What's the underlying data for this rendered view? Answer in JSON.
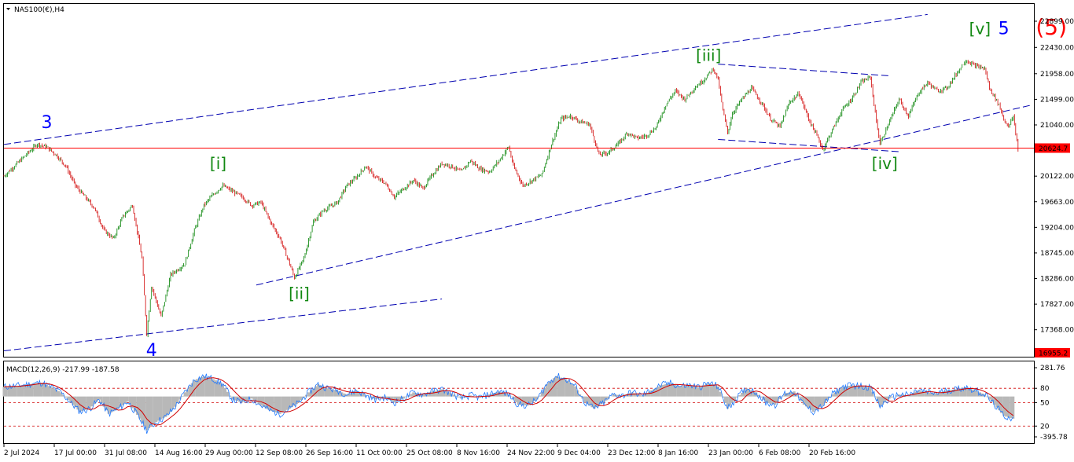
{
  "window": {
    "symbol_label": "NAS100(€),H4"
  },
  "chart_data": [
    {
      "type": "candlestick",
      "title": "NAS100(€),H4",
      "price_axis": {
        "ticks": [
          "22899.00",
          "22430.00",
          "21958.00",
          "21499.00",
          "21040.00",
          "20624.7",
          "20122.00",
          "19663.00",
          "19204.00",
          "18745.00",
          "18286.00",
          "17827.00",
          "17368.00",
          "16955.2"
        ],
        "ylim": [
          16955.2,
          22899
        ]
      },
      "current_price": {
        "value": 20624.7,
        "label": "20624.7",
        "color": "#ff0000"
      },
      "low_marker": {
        "value": 16955.2,
        "label": "16955.2",
        "color": "#ff0000"
      },
      "horizontal_line": {
        "value": 20624.7,
        "color": "#ff0000"
      },
      "time_axis": {
        "ticks": [
          "2 Jul 2024",
          "17 Jul 00:00",
          "31 Jul 08:00",
          "14 Aug 16:00",
          "29 Aug 00:00",
          "12 Sep 08:00",
          "26 Sep 16:00",
          "11 Oct 00:00",
          "25 Oct 08:00",
          "8 Nov 16:00",
          "24 Nov 22:00",
          "9 Dec 04:00",
          "23 Dec 12:00",
          "8 Jan 16:00",
          "23 Jan 00:00",
          "6 Feb 08:00",
          "20 Feb 16:00"
        ]
      },
      "price_path": [
        {
          "i": 0,
          "p": 20122
        },
        {
          "i": 4,
          "p": 20450
        },
        {
          "i": 7,
          "p": 20700
        },
        {
          "i": 9,
          "p": 20640
        },
        {
          "i": 11,
          "p": 20500
        },
        {
          "i": 13,
          "p": 20300
        },
        {
          "i": 15,
          "p": 19950
        },
        {
          "i": 17,
          "p": 19750
        },
        {
          "i": 19,
          "p": 19550
        },
        {
          "i": 21,
          "p": 19150
        },
        {
          "i": 23,
          "p": 19000
        },
        {
          "i": 25,
          "p": 19400
        },
        {
          "i": 27,
          "p": 19600
        },
        {
          "i": 29,
          "p": 18650
        },
        {
          "i": 30,
          "p": 17300
        },
        {
          "i": 31,
          "p": 18150
        },
        {
          "i": 33,
          "p": 17600
        },
        {
          "i": 35,
          "p": 18350
        },
        {
          "i": 38,
          "p": 18550
        },
        {
          "i": 40,
          "p": 19150
        },
        {
          "i": 42,
          "p": 19600
        },
        {
          "i": 44,
          "p": 19800
        },
        {
          "i": 46,
          "p": 19950
        },
        {
          "i": 48,
          "p": 19850
        },
        {
          "i": 50,
          "p": 19750
        },
        {
          "i": 52,
          "p": 19600
        },
        {
          "i": 54,
          "p": 19650
        },
        {
          "i": 56,
          "p": 19300
        },
        {
          "i": 58,
          "p": 19000
        },
        {
          "i": 60,
          "p": 18550
        },
        {
          "i": 61,
          "p": 18300
        },
        {
          "i": 63,
          "p": 18650
        },
        {
          "i": 65,
          "p": 19300
        },
        {
          "i": 67,
          "p": 19500
        },
        {
          "i": 70,
          "p": 19650
        },
        {
          "i": 72,
          "p": 19950
        },
        {
          "i": 74,
          "p": 20100
        },
        {
          "i": 76,
          "p": 20300
        },
        {
          "i": 78,
          "p": 20100
        },
        {
          "i": 80,
          "p": 20000
        },
        {
          "i": 82,
          "p": 19750
        },
        {
          "i": 84,
          "p": 19900
        },
        {
          "i": 86,
          "p": 20050
        },
        {
          "i": 88,
          "p": 19900
        },
        {
          "i": 90,
          "p": 20150
        },
        {
          "i": 92,
          "p": 20350
        },
        {
          "i": 94,
          "p": 20300
        },
        {
          "i": 96,
          "p": 20200
        },
        {
          "i": 98,
          "p": 20400
        },
        {
          "i": 100,
          "p": 20250
        },
        {
          "i": 102,
          "p": 20200
        },
        {
          "i": 104,
          "p": 20400
        },
        {
          "i": 106,
          "p": 20650
        },
        {
          "i": 107,
          "p": 20300
        },
        {
          "i": 109,
          "p": 19950
        },
        {
          "i": 111,
          "p": 20050
        },
        {
          "i": 113,
          "p": 20150
        },
        {
          "i": 115,
          "p": 20700
        },
        {
          "i": 117,
          "p": 21150
        },
        {
          "i": 119,
          "p": 21200
        },
        {
          "i": 121,
          "p": 21100
        },
        {
          "i": 123,
          "p": 21050
        },
        {
          "i": 125,
          "p": 20500
        },
        {
          "i": 127,
          "p": 20550
        },
        {
          "i": 129,
          "p": 20700
        },
        {
          "i": 131,
          "p": 20900
        },
        {
          "i": 133,
          "p": 20800
        },
        {
          "i": 135,
          "p": 20850
        },
        {
          "i": 137,
          "p": 21000
        },
        {
          "i": 139,
          "p": 21400
        },
        {
          "i": 141,
          "p": 21650
        },
        {
          "i": 143,
          "p": 21500
        },
        {
          "i": 145,
          "p": 21700
        },
        {
          "i": 147,
          "p": 21850
        },
        {
          "i": 149,
          "p": 22050
        },
        {
          "i": 150,
          "p": 21850
        },
        {
          "i": 151,
          "p": 21300
        },
        {
          "i": 152,
          "p": 20900
        },
        {
          "i": 153,
          "p": 21250
        },
        {
          "i": 155,
          "p": 21500
        },
        {
          "i": 157,
          "p": 21700
        },
        {
          "i": 159,
          "p": 21450
        },
        {
          "i": 161,
          "p": 21150
        },
        {
          "i": 163,
          "p": 21000
        },
        {
          "i": 165,
          "p": 21450
        },
        {
          "i": 167,
          "p": 21600
        },
        {
          "i": 169,
          "p": 21150
        },
        {
          "i": 171,
          "p": 20800
        },
        {
          "i": 172,
          "p": 20600
        },
        {
          "i": 174,
          "p": 20950
        },
        {
          "i": 176,
          "p": 21300
        },
        {
          "i": 178,
          "p": 21500
        },
        {
          "i": 180,
          "p": 21800
        },
        {
          "i": 182,
          "p": 21900
        },
        {
          "i": 183,
          "p": 21250
        },
        {
          "i": 184,
          "p": 20700
        },
        {
          "i": 186,
          "p": 21100
        },
        {
          "i": 188,
          "p": 21500
        },
        {
          "i": 190,
          "p": 21200
        },
        {
          "i": 192,
          "p": 21600
        },
        {
          "i": 194,
          "p": 21800
        },
        {
          "i": 196,
          "p": 21650
        },
        {
          "i": 198,
          "p": 21700
        },
        {
          "i": 200,
          "p": 21950
        },
        {
          "i": 202,
          "p": 22200
        },
        {
          "i": 204,
          "p": 22100
        },
        {
          "i": 206,
          "p": 22050
        },
        {
          "i": 207,
          "p": 21700
        },
        {
          "i": 209,
          "p": 21400
        },
        {
          "i": 210,
          "p": 21150
        },
        {
          "i": 211,
          "p": 21000
        },
        {
          "i": 212,
          "p": 21200
        },
        {
          "i": 213,
          "p": 20600
        }
      ],
      "trend_lines": [
        {
          "name": "upper-channel",
          "from": {
            "i": 0,
            "p": 20690
          },
          "to": {
            "i": 194,
            "p": 23020
          },
          "color": "#0000b0",
          "dash": true
        },
        {
          "name": "lower-channel-2-4",
          "from": {
            "i": 0,
            "p": 16990
          },
          "to": {
            "i": 92,
            "p": 17920
          },
          "color": "#0000b0",
          "dash": true
        },
        {
          "name": "lower-channel-ii",
          "from": {
            "i": 53,
            "p": 18170
          },
          "to": {
            "i": 216,
            "p": 21400
          },
          "color": "#0000b0",
          "dash": true
        },
        {
          "name": "triangle-top",
          "from": {
            "i": 150,
            "p": 22130
          },
          "to": {
            "i": 186,
            "p": 21920
          },
          "color": "#0000b0",
          "dash": true
        },
        {
          "name": "triangle-bottom",
          "from": {
            "i": 150,
            "p": 20780
          },
          "to": {
            "i": 188,
            "p": 20560
          },
          "color": "#0000b0",
          "dash": true
        }
      ],
      "wave_labels": [
        {
          "text": "3",
          "i": 9,
          "p": 20980,
          "color": "#0000ff",
          "size": 22
        },
        {
          "text": "4",
          "i": 31,
          "p": 16900,
          "color": "#0000ff",
          "size": 22
        },
        {
          "text": "[i]",
          "i": 45,
          "p": 20250,
          "color": "#118811",
          "size": 20
        },
        {
          "text": "[ii]",
          "i": 62,
          "p": 17920,
          "color": "#118811",
          "size": 20
        },
        {
          "text": "[iii]",
          "i": 148,
          "p": 22190,
          "color": "#118811",
          "size": 20
        },
        {
          "text": "[iv]",
          "i": 185,
          "p": 20250,
          "color": "#118811",
          "size": 20
        },
        {
          "text": "[v]",
          "i": 205,
          "p": 22670,
          "color": "#118811",
          "size": 20
        },
        {
          "text": "5",
          "i": 210,
          "p": 22670,
          "color": "#0000ff",
          "size": 22
        },
        {
          "text": "(5)",
          "i": 220,
          "p": 22660,
          "color": "#ff0000",
          "size": 28
        }
      ]
    },
    {
      "type": "macd",
      "label": "MACD(12,26,9) -217.99 -187.58",
      "params": "12,26,9",
      "main_value": -217.99,
      "signal_value": -187.58,
      "axis_ticks": [
        "281.76",
        "80",
        "50",
        "20",
        "-395.78"
      ],
      "levels": [
        80,
        50,
        20
      ],
      "ylim": [
        -395.78,
        281.76
      ],
      "macd_path": [
        {
          "i": 0,
          "v": 95
        },
        {
          "i": 3,
          "v": 105
        },
        {
          "i": 6,
          "v": 125
        },
        {
          "i": 8,
          "v": 135
        },
        {
          "i": 10,
          "v": 90
        },
        {
          "i": 12,
          "v": 40
        },
        {
          "i": 14,
          "v": -60
        },
        {
          "i": 16,
          "v": -150
        },
        {
          "i": 18,
          "v": -120
        },
        {
          "i": 20,
          "v": -30
        },
        {
          "i": 22,
          "v": -170
        },
        {
          "i": 24,
          "v": -120
        },
        {
          "i": 26,
          "v": -50
        },
        {
          "i": 28,
          "v": -180
        },
        {
          "i": 30,
          "v": -330
        },
        {
          "i": 32,
          "v": -250
        },
        {
          "i": 34,
          "v": -200
        },
        {
          "i": 36,
          "v": -100
        },
        {
          "i": 38,
          "v": 40
        },
        {
          "i": 40,
          "v": 160
        },
        {
          "i": 42,
          "v": 200
        },
        {
          "i": 44,
          "v": 170
        },
        {
          "i": 46,
          "v": 120
        },
        {
          "i": 48,
          "v": -30
        },
        {
          "i": 50,
          "v": -60
        },
        {
          "i": 52,
          "v": -20
        },
        {
          "i": 54,
          "v": -90
        },
        {
          "i": 56,
          "v": -140
        },
        {
          "i": 58,
          "v": -170
        },
        {
          "i": 60,
          "v": -120
        },
        {
          "i": 62,
          "v": -60
        },
        {
          "i": 64,
          "v": 40
        },
        {
          "i": 66,
          "v": 120
        },
        {
          "i": 68,
          "v": 80
        },
        {
          "i": 70,
          "v": 60
        },
        {
          "i": 72,
          "v": 20
        },
        {
          "i": 74,
          "v": 60
        },
        {
          "i": 76,
          "v": 10
        },
        {
          "i": 78,
          "v": -30
        },
        {
          "i": 80,
          "v": -10
        },
        {
          "i": 82,
          "v": -60
        },
        {
          "i": 84,
          "v": -20
        },
        {
          "i": 86,
          "v": 40
        },
        {
          "i": 88,
          "v": 20
        },
        {
          "i": 90,
          "v": 50
        },
        {
          "i": 92,
          "v": 70
        },
        {
          "i": 94,
          "v": 30
        },
        {
          "i": 96,
          "v": -20
        },
        {
          "i": 98,
          "v": 10
        },
        {
          "i": 100,
          "v": -10
        },
        {
          "i": 102,
          "v": 20
        },
        {
          "i": 104,
          "v": 50
        },
        {
          "i": 106,
          "v": 20
        },
        {
          "i": 108,
          "v": -80
        },
        {
          "i": 110,
          "v": -90
        },
        {
          "i": 112,
          "v": -30
        },
        {
          "i": 114,
          "v": 120
        },
        {
          "i": 116,
          "v": 200
        },
        {
          "i": 118,
          "v": 170
        },
        {
          "i": 120,
          "v": 100
        },
        {
          "i": 122,
          "v": -60
        },
        {
          "i": 124,
          "v": -120
        },
        {
          "i": 126,
          "v": -60
        },
        {
          "i": 128,
          "v": 20
        },
        {
          "i": 130,
          "v": 10
        },
        {
          "i": 132,
          "v": 40
        },
        {
          "i": 134,
          "v": 10
        },
        {
          "i": 136,
          "v": 60
        },
        {
          "i": 138,
          "v": 110
        },
        {
          "i": 140,
          "v": 130
        },
        {
          "i": 142,
          "v": 100
        },
        {
          "i": 144,
          "v": 110
        },
        {
          "i": 146,
          "v": 90
        },
        {
          "i": 148,
          "v": 130
        },
        {
          "i": 150,
          "v": 100
        },
        {
          "i": 152,
          "v": -120
        },
        {
          "i": 154,
          "v": -10
        },
        {
          "i": 156,
          "v": 80
        },
        {
          "i": 158,
          "v": 40
        },
        {
          "i": 160,
          "v": -60
        },
        {
          "i": 162,
          "v": -80
        },
        {
          "i": 164,
          "v": 30
        },
        {
          "i": 166,
          "v": 50
        },
        {
          "i": 168,
          "v": -80
        },
        {
          "i": 170,
          "v": -150
        },
        {
          "i": 172,
          "v": -90
        },
        {
          "i": 174,
          "v": 20
        },
        {
          "i": 176,
          "v": 90
        },
        {
          "i": 178,
          "v": 110
        },
        {
          "i": 180,
          "v": 100
        },
        {
          "i": 182,
          "v": 90
        },
        {
          "i": 184,
          "v": -100
        },
        {
          "i": 186,
          "v": -20
        },
        {
          "i": 188,
          "v": 20
        },
        {
          "i": 190,
          "v": 10
        },
        {
          "i": 192,
          "v": 60
        },
        {
          "i": 194,
          "v": 40
        },
        {
          "i": 196,
          "v": 30
        },
        {
          "i": 198,
          "v": 60
        },
        {
          "i": 200,
          "v": 70
        },
        {
          "i": 202,
          "v": 90
        },
        {
          "i": 204,
          "v": 60
        },
        {
          "i": 206,
          "v": 20
        },
        {
          "i": 208,
          "v": -80
        },
        {
          "i": 210,
          "v": -190
        },
        {
          "i": 212,
          "v": -218
        }
      ]
    }
  ]
}
